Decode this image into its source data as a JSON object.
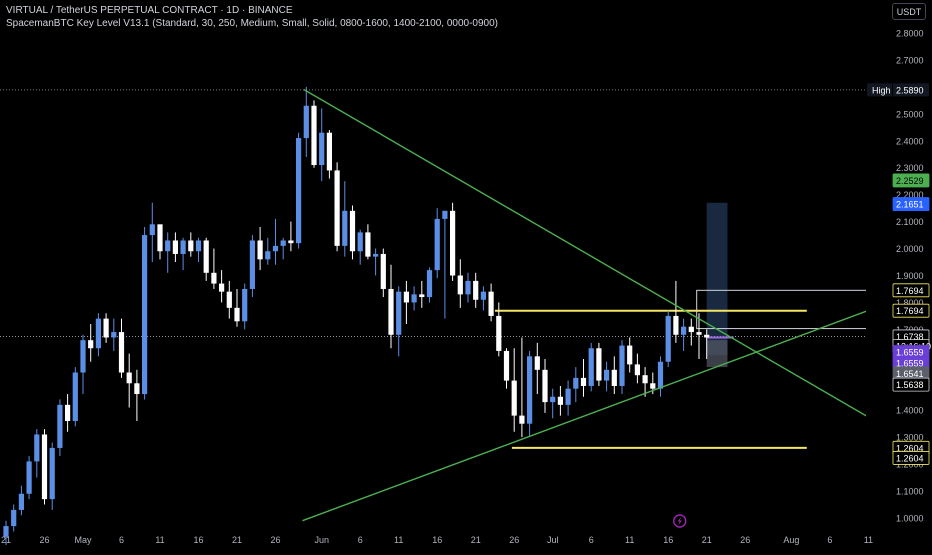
{
  "header": {
    "symbol_line": "VIRTUAL / TetherUS PERPETUAL CONTRACT · 1D · BINANCE",
    "indicator_line": "SpacemanBTC Key Level V13.1 (Standard, 30, 250, Medium, Small, Solid, 0800-1600, 1400-2100, 0000-0900)",
    "currency": "USDT"
  },
  "colors": {
    "background": "#000000",
    "up": "#5b8fe6",
    "down": "#ffffff",
    "trendline": "#4caf50",
    "level": "#f5e663",
    "axis_text": "#b2b5be",
    "label_dark": "#131722",
    "label_green": "#4caf50",
    "label_blue": "#2962ff",
    "label_purple": "#6a3fd6",
    "label_gray": "#5d606b"
  },
  "chart_data": {
    "type": "candlestick",
    "ylim": [
      0.95,
      2.9
    ],
    "y_ticks": [
      1.0,
      1.1,
      1.2,
      1.3,
      1.4,
      1.5,
      1.6,
      1.7,
      1.8,
      1.9,
      2.0,
      2.1,
      2.2,
      2.3,
      2.4,
      2.5,
      2.6,
      2.7,
      2.8
    ],
    "y_tick_labels": [
      "1.0000",
      "1.1000",
      "1.2000",
      "1.3000",
      "1.4000",
      "1.5000",
      "1.6000",
      "1.7000",
      "1.8000",
      "1.9000",
      "2.0000",
      "2.1000",
      "2.2000",
      "2.3000",
      "2.4000",
      "2.5000",
      "2.6000",
      "2.7000",
      "2.8000"
    ],
    "x_labels": [
      {
        "day": 0,
        "label": "21"
      },
      {
        "day": 5,
        "label": "26"
      },
      {
        "day": 10,
        "label": "May"
      },
      {
        "day": 15,
        "label": "6"
      },
      {
        "day": 20,
        "label": "11"
      },
      {
        "day": 25,
        "label": "16"
      },
      {
        "day": 30,
        "label": "21"
      },
      {
        "day": 35,
        "label": "26"
      },
      {
        "day": 41,
        "label": "Jun"
      },
      {
        "day": 46,
        "label": "6"
      },
      {
        "day": 51,
        "label": "11"
      },
      {
        "day": 56,
        "label": "16"
      },
      {
        "day": 61,
        "label": "21"
      },
      {
        "day": 66,
        "label": "26"
      },
      {
        "day": 71,
        "label": "Jul"
      },
      {
        "day": 76,
        "label": "6"
      },
      {
        "day": 81,
        "label": "11"
      },
      {
        "day": 86,
        "label": "16"
      },
      {
        "day": 91,
        "label": "21"
      },
      {
        "day": 96,
        "label": "26"
      },
      {
        "day": 102,
        "label": "Aug"
      },
      {
        "day": 107,
        "label": "6"
      },
      {
        "day": 112,
        "label": "11"
      }
    ],
    "candles": [
      {
        "d": 0,
        "o": 0.93,
        "h": 0.99,
        "l": 0.9,
        "c": 0.97
      },
      {
        "d": 1,
        "o": 0.97,
        "h": 1.05,
        "l": 0.95,
        "c": 1.03
      },
      {
        "d": 2,
        "o": 1.03,
        "h": 1.12,
        "l": 1.01,
        "c": 1.09
      },
      {
        "d": 3,
        "o": 1.09,
        "h": 1.23,
        "l": 1.07,
        "c": 1.21
      },
      {
        "d": 4,
        "o": 1.21,
        "h": 1.33,
        "l": 1.15,
        "c": 1.31
      },
      {
        "d": 5,
        "o": 1.31,
        "h": 1.33,
        "l": 1.05,
        "c": 1.07
      },
      {
        "d": 6,
        "o": 1.07,
        "h": 1.28,
        "l": 1.03,
        "c": 1.26
      },
      {
        "d": 7,
        "o": 1.26,
        "h": 1.44,
        "l": 1.23,
        "c": 1.42
      },
      {
        "d": 8,
        "o": 1.42,
        "h": 1.46,
        "l": 1.32,
        "c": 1.36
      },
      {
        "d": 9,
        "o": 1.36,
        "h": 1.56,
        "l": 1.34,
        "c": 1.54
      },
      {
        "d": 10,
        "o": 1.54,
        "h": 1.68,
        "l": 1.46,
        "c": 1.66
      },
      {
        "d": 11,
        "o": 1.66,
        "h": 1.72,
        "l": 1.58,
        "c": 1.63
      },
      {
        "d": 12,
        "o": 1.63,
        "h": 1.76,
        "l": 1.6,
        "c": 1.74
      },
      {
        "d": 13,
        "o": 1.74,
        "h": 1.76,
        "l": 1.65,
        "c": 1.67
      },
      {
        "d": 14,
        "o": 1.67,
        "h": 1.74,
        "l": 1.62,
        "c": 1.69
      },
      {
        "d": 15,
        "o": 1.69,
        "h": 1.74,
        "l": 1.52,
        "c": 1.54
      },
      {
        "d": 16,
        "o": 1.54,
        "h": 1.61,
        "l": 1.41,
        "c": 1.5
      },
      {
        "d": 17,
        "o": 1.5,
        "h": 1.55,
        "l": 1.36,
        "c": 1.46
      },
      {
        "d": 18,
        "o": 1.46,
        "h": 2.08,
        "l": 1.44,
        "c": 2.05
      },
      {
        "d": 19,
        "o": 2.05,
        "h": 2.17,
        "l": 1.95,
        "c": 2.09
      },
      {
        "d": 20,
        "o": 2.09,
        "h": 2.08,
        "l": 1.96,
        "c": 1.99
      },
      {
        "d": 21,
        "o": 1.99,
        "h": 2.06,
        "l": 1.91,
        "c": 2.03
      },
      {
        "d": 22,
        "o": 2.03,
        "h": 2.06,
        "l": 1.95,
        "c": 1.98
      },
      {
        "d": 23,
        "o": 1.98,
        "h": 2.04,
        "l": 1.92,
        "c": 2.03
      },
      {
        "d": 24,
        "o": 2.03,
        "h": 2.06,
        "l": 1.97,
        "c": 1.99
      },
      {
        "d": 25,
        "o": 1.99,
        "h": 2.04,
        "l": 1.95,
        "c": 2.03
      },
      {
        "d": 26,
        "o": 2.03,
        "h": 2.04,
        "l": 1.88,
        "c": 1.91
      },
      {
        "d": 27,
        "o": 1.91,
        "h": 2.0,
        "l": 1.85,
        "c": 1.87
      },
      {
        "d": 28,
        "o": 1.87,
        "h": 1.92,
        "l": 1.8,
        "c": 1.84
      },
      {
        "d": 29,
        "o": 1.84,
        "h": 1.88,
        "l": 1.74,
        "c": 1.78
      },
      {
        "d": 30,
        "o": 1.78,
        "h": 1.85,
        "l": 1.71,
        "c": 1.73
      },
      {
        "d": 31,
        "o": 1.73,
        "h": 1.87,
        "l": 1.7,
        "c": 1.85
      },
      {
        "d": 32,
        "o": 1.85,
        "h": 2.05,
        "l": 1.82,
        "c": 2.03
      },
      {
        "d": 33,
        "o": 2.03,
        "h": 2.08,
        "l": 1.92,
        "c": 1.96
      },
      {
        "d": 34,
        "o": 1.96,
        "h": 2.04,
        "l": 1.94,
        "c": 1.99
      },
      {
        "d": 35,
        "o": 1.99,
        "h": 2.11,
        "l": 1.94,
        "c": 2.01
      },
      {
        "d": 36,
        "o": 2.01,
        "h": 2.04,
        "l": 1.96,
        "c": 2.03
      },
      {
        "d": 37,
        "o": 2.03,
        "h": 2.1,
        "l": 1.99,
        "c": 2.02
      },
      {
        "d": 38,
        "o": 2.02,
        "h": 2.43,
        "l": 2.0,
        "c": 2.41
      },
      {
        "d": 39,
        "o": 2.41,
        "h": 2.6,
        "l": 2.34,
        "c": 2.53
      },
      {
        "d": 40,
        "o": 2.53,
        "h": 2.55,
        "l": 2.3,
        "c": 2.31
      },
      {
        "d": 41,
        "o": 2.31,
        "h": 2.52,
        "l": 2.25,
        "c": 2.43
      },
      {
        "d": 42,
        "o": 2.43,
        "h": 2.44,
        "l": 2.26,
        "c": 2.29
      },
      {
        "d": 43,
        "o": 2.29,
        "h": 2.32,
        "l": 1.99,
        "c": 2.01
      },
      {
        "d": 44,
        "o": 2.01,
        "h": 2.25,
        "l": 1.97,
        "c": 2.14
      },
      {
        "d": 45,
        "o": 2.14,
        "h": 2.16,
        "l": 1.96,
        "c": 1.99
      },
      {
        "d": 46,
        "o": 1.99,
        "h": 2.07,
        "l": 1.94,
        "c": 2.06
      },
      {
        "d": 47,
        "o": 2.06,
        "h": 2.09,
        "l": 1.96,
        "c": 1.97
      },
      {
        "d": 48,
        "o": 1.97,
        "h": 2.0,
        "l": 1.9,
        "c": 1.98
      },
      {
        "d": 49,
        "o": 1.98,
        "h": 2.0,
        "l": 1.82,
        "c": 1.85
      },
      {
        "d": 50,
        "o": 1.85,
        "h": 1.94,
        "l": 1.63,
        "c": 1.68
      },
      {
        "d": 51,
        "o": 1.68,
        "h": 1.86,
        "l": 1.6,
        "c": 1.84
      },
      {
        "d": 52,
        "o": 1.84,
        "h": 1.88,
        "l": 1.72,
        "c": 1.8
      },
      {
        "d": 53,
        "o": 1.8,
        "h": 1.86,
        "l": 1.77,
        "c": 1.83
      },
      {
        "d": 54,
        "o": 1.83,
        "h": 1.88,
        "l": 1.78,
        "c": 1.82
      },
      {
        "d": 55,
        "o": 1.82,
        "h": 1.93,
        "l": 1.8,
        "c": 1.92
      },
      {
        "d": 56,
        "o": 1.92,
        "h": 2.15,
        "l": 1.89,
        "c": 2.11
      },
      {
        "d": 57,
        "o": 2.11,
        "h": 2.14,
        "l": 1.74,
        "c": 2.14
      },
      {
        "d": 58,
        "o": 2.14,
        "h": 2.17,
        "l": 1.88,
        "c": 1.9
      },
      {
        "d": 59,
        "o": 1.9,
        "h": 1.96,
        "l": 1.78,
        "c": 1.83
      },
      {
        "d": 60,
        "o": 1.83,
        "h": 1.91,
        "l": 1.8,
        "c": 1.88
      },
      {
        "d": 61,
        "o": 1.88,
        "h": 1.91,
        "l": 1.78,
        "c": 1.81
      },
      {
        "d": 62,
        "o": 1.81,
        "h": 1.86,
        "l": 1.77,
        "c": 1.84
      },
      {
        "d": 63,
        "o": 1.84,
        "h": 1.87,
        "l": 1.73,
        "c": 1.75
      },
      {
        "d": 64,
        "o": 1.75,
        "h": 1.8,
        "l": 1.6,
        "c": 1.62
      },
      {
        "d": 65,
        "o": 1.62,
        "h": 1.63,
        "l": 1.48,
        "c": 1.51
      },
      {
        "d": 66,
        "o": 1.51,
        "h": 1.63,
        "l": 1.32,
        "c": 1.38
      },
      {
        "d": 67,
        "o": 1.38,
        "h": 1.67,
        "l": 1.3,
        "c": 1.35
      },
      {
        "d": 68,
        "o": 1.35,
        "h": 1.62,
        "l": 1.3,
        "c": 1.6
      },
      {
        "d": 69,
        "o": 1.6,
        "h": 1.65,
        "l": 1.46,
        "c": 1.55
      },
      {
        "d": 70,
        "o": 1.55,
        "h": 1.59,
        "l": 1.39,
        "c": 1.43
      },
      {
        "d": 71,
        "o": 1.43,
        "h": 1.48,
        "l": 1.37,
        "c": 1.45
      },
      {
        "d": 72,
        "o": 1.45,
        "h": 1.49,
        "l": 1.38,
        "c": 1.42
      },
      {
        "d": 73,
        "o": 1.42,
        "h": 1.51,
        "l": 1.38,
        "c": 1.48
      },
      {
        "d": 74,
        "o": 1.48,
        "h": 1.56,
        "l": 1.43,
        "c": 1.52
      },
      {
        "d": 75,
        "o": 1.52,
        "h": 1.59,
        "l": 1.45,
        "c": 1.49
      },
      {
        "d": 76,
        "o": 1.49,
        "h": 1.65,
        "l": 1.47,
        "c": 1.63
      },
      {
        "d": 77,
        "o": 1.63,
        "h": 1.65,
        "l": 1.49,
        "c": 1.51
      },
      {
        "d": 78,
        "o": 1.51,
        "h": 1.58,
        "l": 1.47,
        "c": 1.55
      },
      {
        "d": 79,
        "o": 1.55,
        "h": 1.6,
        "l": 1.46,
        "c": 1.49
      },
      {
        "d": 80,
        "o": 1.49,
        "h": 1.66,
        "l": 1.46,
        "c": 1.64
      },
      {
        "d": 81,
        "o": 1.64,
        "h": 1.67,
        "l": 1.54,
        "c": 1.57
      },
      {
        "d": 82,
        "o": 1.57,
        "h": 1.61,
        "l": 1.5,
        "c": 1.53
      },
      {
        "d": 83,
        "o": 1.53,
        "h": 1.56,
        "l": 1.45,
        "c": 1.5
      },
      {
        "d": 84,
        "o": 1.5,
        "h": 1.54,
        "l": 1.46,
        "c": 1.48
      },
      {
        "d": 85,
        "o": 1.48,
        "h": 1.6,
        "l": 1.45,
        "c": 1.58
      },
      {
        "d": 86,
        "o": 1.58,
        "h": 1.77,
        "l": 1.56,
        "c": 1.75
      },
      {
        "d": 87,
        "o": 1.75,
        "h": 1.88,
        "l": 1.65,
        "c": 1.68
      },
      {
        "d": 88,
        "o": 1.68,
        "h": 1.74,
        "l": 1.62,
        "c": 1.71
      },
      {
        "d": 89,
        "o": 1.71,
        "h": 1.74,
        "l": 1.64,
        "c": 1.69
      },
      {
        "d": 90,
        "o": 1.69,
        "h": 1.76,
        "l": 1.59,
        "c": 1.68
      },
      {
        "d": 91,
        "o": 1.68,
        "h": 1.7,
        "l": 1.59,
        "c": 1.67
      }
    ],
    "trendlines": [
      {
        "name": "descending",
        "from": {
          "d": 38.7,
          "p": 2.59
        },
        "to": {
          "d": 119.5,
          "p": 1.25
        }
      },
      {
        "name": "ascending",
        "from": {
          "d": 38.5,
          "p": 0.99
        },
        "to": {
          "d": 119.5,
          "p": 1.85
        }
      }
    ],
    "levels": [
      {
        "from_d": 63.5,
        "to_d": 104,
        "p": 1.7694
      },
      {
        "from_d": 65.7,
        "to_d": 104,
        "p": 1.2604
      }
    ],
    "projection": {
      "from_d": 89.7,
      "to_d": 119.5,
      "top": 1.845,
      "bottom": 1.703
    },
    "position_box": {
      "from_d": 91,
      "to_d": 93.7,
      "top": 2.17,
      "bottom": 1.605
    },
    "high_line": 2.589,
    "last_price_line": 1.6738,
    "price_labels": [
      {
        "label": "High",
        "price_text": "2.5890",
        "p": 2.589,
        "style": "dark"
      },
      {
        "text": "2.2529",
        "p": 2.2529,
        "style": "green"
      },
      {
        "text": "2.1651",
        "p": 2.1651,
        "style": "blue"
      },
      {
        "text": "1.7694",
        "p": 1.845,
        "style": "dark-yellow"
      },
      {
        "text": "1.7694",
        "p": 1.7694,
        "style": "dark-yellow"
      },
      {
        "text": "1.6738",
        "p": 1.6738,
        "style": "dark"
      },
      {
        "text": "13:16:10",
        "p": 1.638,
        "style": "dark"
      },
      {
        "text": "1.6559",
        "p": 1.616,
        "style": "purple"
      },
      {
        "text": "1.6559",
        "p": 1.576,
        "style": "purple"
      },
      {
        "text": "1.6541",
        "p": 1.537,
        "style": "gray"
      },
      {
        "text": "1.5638",
        "p": 1.495,
        "style": "dark"
      },
      {
        "text": "1.2604",
        "p": 1.2604,
        "style": "dark-yellow"
      },
      {
        "text": "1.2604",
        "p": 1.223,
        "style": "dark-yellow"
      }
    ]
  }
}
